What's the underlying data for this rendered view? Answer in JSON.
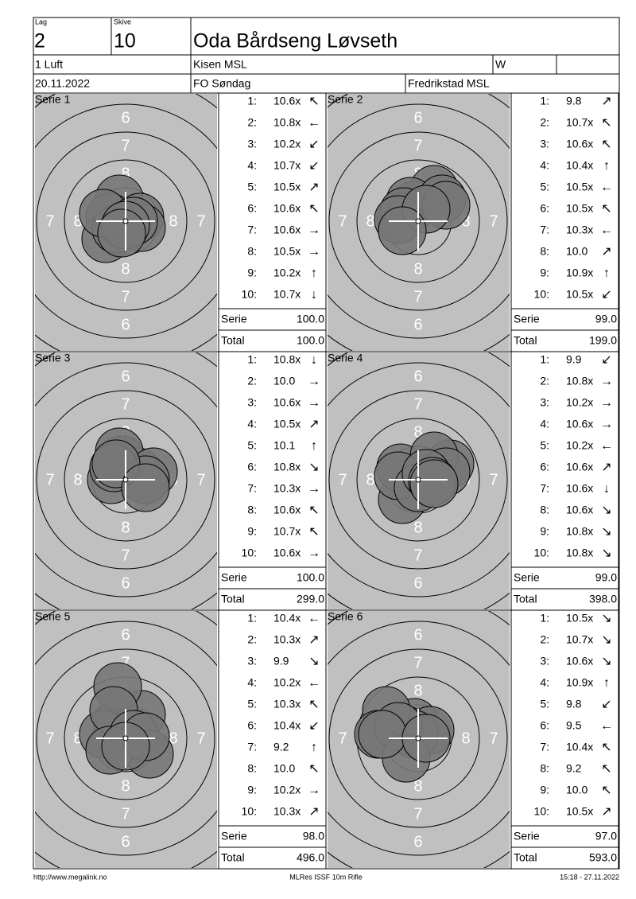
{
  "header": {
    "lag_label": "Lag",
    "lag": "2",
    "skive_label": "Skive",
    "skive": "10",
    "name": "Oda Bårdseng Løvseth",
    "class": "1 Luft",
    "club": "Kisen MSL",
    "flag": "W",
    "date": "20.11.2022",
    "event": "FO Søndag",
    "location": "Fredrikstad MSL"
  },
  "ring_labels": [
    "6",
    "7",
    "8"
  ],
  "series": [
    {
      "title": "Serie 1",
      "shots": [
        {
          "no": "1:",
          "score": "10.6x",
          "dir": "↖"
        },
        {
          "no": "2:",
          "score": "10.8x",
          "dir": "←"
        },
        {
          "no": "3:",
          "score": "10.2x",
          "dir": "↙"
        },
        {
          "no": "4:",
          "score": "10.7x",
          "dir": "↙"
        },
        {
          "no": "5:",
          "score": "10.5x",
          "dir": "↗"
        },
        {
          "no": "6:",
          "score": "10.6x",
          "dir": "↖"
        },
        {
          "no": "7:",
          "score": "10.6x",
          "dir": "→"
        },
        {
          "no": "8:",
          "score": "10.5x",
          "dir": "→"
        },
        {
          "no": "9:",
          "score": "10.2x",
          "dir": "↑"
        },
        {
          "no": "10:",
          "score": "10.7x",
          "dir": "↓"
        }
      ],
      "serie_label": "Serie",
      "serie": "100.0",
      "total_label": "Total",
      "total": "100.0"
    },
    {
      "title": "Serie 2",
      "shots": [
        {
          "no": "1:",
          "score": "9.8",
          "dir": "↗"
        },
        {
          "no": "2:",
          "score": "10.7x",
          "dir": "↖"
        },
        {
          "no": "3:",
          "score": "10.6x",
          "dir": "↖"
        },
        {
          "no": "4:",
          "score": "10.4x",
          "dir": "↑"
        },
        {
          "no": "5:",
          "score": "10.5x",
          "dir": "←"
        },
        {
          "no": "6:",
          "score": "10.5x",
          "dir": "↖"
        },
        {
          "no": "7:",
          "score": "10.3x",
          "dir": "←"
        },
        {
          "no": "8:",
          "score": "10.0",
          "dir": "↗"
        },
        {
          "no": "9:",
          "score": "10.9x",
          "dir": "↑"
        },
        {
          "no": "10:",
          "score": "10.5x",
          "dir": "↙"
        }
      ],
      "serie_label": "Serie",
      "serie": "99.0",
      "total_label": "Total",
      "total": "199.0"
    },
    {
      "title": "Serie 3",
      "shots": [
        {
          "no": "1:",
          "score": "10.8x",
          "dir": "↓"
        },
        {
          "no": "2:",
          "score": "10.0",
          "dir": "→"
        },
        {
          "no": "3:",
          "score": "10.6x",
          "dir": "→"
        },
        {
          "no": "4:",
          "score": "10.5x",
          "dir": "↗"
        },
        {
          "no": "5:",
          "score": "10.1",
          "dir": "↑"
        },
        {
          "no": "6:",
          "score": "10.8x",
          "dir": "↘"
        },
        {
          "no": "7:",
          "score": "10.3x",
          "dir": "→"
        },
        {
          "no": "8:",
          "score": "10.6x",
          "dir": "↖"
        },
        {
          "no": "9:",
          "score": "10.7x",
          "dir": "↖"
        },
        {
          "no": "10:",
          "score": "10.6x",
          "dir": "→"
        }
      ],
      "serie_label": "Serie",
      "serie": "100.0",
      "total_label": "Total",
      "total": "299.0"
    },
    {
      "title": "Serie 4",
      "shots": [
        {
          "no": "1:",
          "score": "9.9",
          "dir": "↙"
        },
        {
          "no": "2:",
          "score": "10.8x",
          "dir": "→"
        },
        {
          "no": "3:",
          "score": "10.2x",
          "dir": "→"
        },
        {
          "no": "4:",
          "score": "10.6x",
          "dir": "→"
        },
        {
          "no": "5:",
          "score": "10.2x",
          "dir": "←"
        },
        {
          "no": "6:",
          "score": "10.6x",
          "dir": "↗"
        },
        {
          "no": "7:",
          "score": "10.6x",
          "dir": "↓"
        },
        {
          "no": "8:",
          "score": "10.6x",
          "dir": "↘"
        },
        {
          "no": "9:",
          "score": "10.8x",
          "dir": "↘"
        },
        {
          "no": "10:",
          "score": "10.8x",
          "dir": "↘"
        }
      ],
      "serie_label": "Serie",
      "serie": "99.0",
      "total_label": "Total",
      "total": "398.0"
    },
    {
      "title": "Serie 5",
      "shots": [
        {
          "no": "1:",
          "score": "10.4x",
          "dir": "←"
        },
        {
          "no": "2:",
          "score": "10.3x",
          "dir": "↗"
        },
        {
          "no": "3:",
          "score": "9.9",
          "dir": "↘"
        },
        {
          "no": "4:",
          "score": "10.2x",
          "dir": "←"
        },
        {
          "no": "5:",
          "score": "10.3x",
          "dir": "↖"
        },
        {
          "no": "6:",
          "score": "10.4x",
          "dir": "↙"
        },
        {
          "no": "7:",
          "score": "9.2",
          "dir": "↑"
        },
        {
          "no": "8:",
          "score": "10.0",
          "dir": "↖"
        },
        {
          "no": "9:",
          "score": "10.2x",
          "dir": "→"
        },
        {
          "no": "10:",
          "score": "10.3x",
          "dir": "↗"
        }
      ],
      "serie_label": "Serie",
      "serie": "98.0",
      "total_label": "Total",
      "total": "496.0"
    },
    {
      "title": "Serie 6",
      "shots": [
        {
          "no": "1:",
          "score": "10.5x",
          "dir": "↘"
        },
        {
          "no": "2:",
          "score": "10.7x",
          "dir": "↘"
        },
        {
          "no": "3:",
          "score": "10.6x",
          "dir": "↘"
        },
        {
          "no": "4:",
          "score": "10.9x",
          "dir": "↑"
        },
        {
          "no": "5:",
          "score": "9.8",
          "dir": "↙"
        },
        {
          "no": "6:",
          "score": "9.5",
          "dir": "←"
        },
        {
          "no": "7:",
          "score": "10.4x",
          "dir": "↖"
        },
        {
          "no": "8:",
          "score": "9.2",
          "dir": "↖"
        },
        {
          "no": "9:",
          "score": "10.0",
          "dir": "↖"
        },
        {
          "no": "10:",
          "score": "10.5x",
          "dir": "↗"
        }
      ],
      "serie_label": "Serie",
      "serie": "97.0",
      "total_label": "Total",
      "total": "593.0"
    }
  ],
  "footer": {
    "url": "http://www.megalink.no",
    "program": "MLRes ISSF 10m Rifle",
    "timestamp": "15:18 - 27.11.2022"
  }
}
